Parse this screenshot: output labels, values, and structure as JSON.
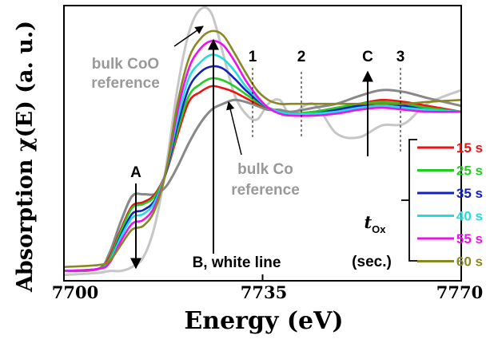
{
  "chart_data": {
    "type": "line",
    "xlabel": "Energy (eV)",
    "ylabel": "Absorption χ(E) (a. u.)",
    "xlim": [
      7700,
      7770
    ],
    "ylim": [
      0,
      1.4
    ],
    "x_ticks": [
      "7700",
      "7735",
      "7770"
    ],
    "grid": false,
    "legend_position": "right",
    "legend_title_main": "t",
    "legend_title_sub": "Ox",
    "legend_title_unit": "(sec.)",
    "series": [
      {
        "name": "15 s",
        "color": "#ee1111",
        "x": [
          7700,
          7706,
          7708,
          7710,
          7712,
          7714,
          7716,
          7718,
          7720,
          7722,
          7724,
          7726,
          7728,
          7730,
          7732,
          7734,
          7736,
          7738,
          7740,
          7744,
          7748,
          7752,
          7756,
          7760,
          7764,
          7770
        ],
        "y": [
          0.05,
          0.06,
          0.12,
          0.26,
          0.38,
          0.4,
          0.44,
          0.55,
          0.74,
          0.91,
          0.96,
          0.99,
          0.98,
          0.96,
          0.93,
          0.9,
          0.88,
          0.86,
          0.85,
          0.86,
          0.88,
          0.9,
          0.92,
          0.91,
          0.89,
          0.86
        ]
      },
      {
        "name": "25 s",
        "color": "#22cc22",
        "x": [
          7700,
          7706,
          7708,
          7710,
          7712,
          7714,
          7716,
          7718,
          7720,
          7722,
          7724,
          7726,
          7728,
          7730,
          7732,
          7734,
          7736,
          7738,
          7740,
          7744,
          7748,
          7752,
          7756,
          7760,
          7764,
          7770
        ],
        "y": [
          0.05,
          0.06,
          0.11,
          0.25,
          0.37,
          0.39,
          0.43,
          0.55,
          0.76,
          0.94,
          1.0,
          1.03,
          1.02,
          0.99,
          0.95,
          0.91,
          0.88,
          0.86,
          0.85,
          0.86,
          0.88,
          0.9,
          0.91,
          0.9,
          0.88,
          0.86
        ]
      },
      {
        "name": "35 s",
        "color": "#1122bb",
        "x": [
          7700,
          7706,
          7708,
          7710,
          7712,
          7714,
          7716,
          7718,
          7720,
          7722,
          7724,
          7726,
          7728,
          7730,
          7732,
          7734,
          7736,
          7738,
          7740,
          7744,
          7748,
          7752,
          7756,
          7760,
          7764,
          7770
        ],
        "y": [
          0.05,
          0.06,
          0.1,
          0.23,
          0.34,
          0.36,
          0.41,
          0.55,
          0.79,
          0.98,
          1.06,
          1.09,
          1.08,
          1.03,
          0.97,
          0.92,
          0.88,
          0.86,
          0.85,
          0.85,
          0.87,
          0.89,
          0.9,
          0.89,
          0.87,
          0.86
        ]
      },
      {
        "name": "40 s",
        "color": "#22dddd",
        "x": [
          7700,
          7706,
          7708,
          7710,
          7712,
          7714,
          7716,
          7718,
          7720,
          7722,
          7724,
          7726,
          7728,
          7730,
          7732,
          7734,
          7736,
          7738,
          7740,
          7744,
          7748,
          7752,
          7756,
          7760,
          7764,
          7770
        ],
        "y": [
          0.05,
          0.06,
          0.1,
          0.22,
          0.32,
          0.34,
          0.4,
          0.56,
          0.82,
          1.03,
          1.11,
          1.15,
          1.13,
          1.07,
          0.99,
          0.93,
          0.88,
          0.86,
          0.85,
          0.85,
          0.86,
          0.88,
          0.89,
          0.88,
          0.87,
          0.86
        ]
      },
      {
        "name": "55 s",
        "color": "#ee11ee",
        "x": [
          7700,
          7706,
          7708,
          7710,
          7712,
          7714,
          7716,
          7718,
          7720,
          7722,
          7724,
          7726,
          7728,
          7730,
          7732,
          7734,
          7736,
          7738,
          7740,
          7744,
          7748,
          7752,
          7756,
          7760,
          7764,
          7770
        ],
        "y": [
          0.05,
          0.06,
          0.09,
          0.2,
          0.29,
          0.31,
          0.38,
          0.56,
          0.86,
          1.08,
          1.18,
          1.22,
          1.2,
          1.12,
          1.02,
          0.94,
          0.88,
          0.85,
          0.84,
          0.84,
          0.85,
          0.87,
          0.88,
          0.87,
          0.86,
          0.86
        ]
      },
      {
        "name": "60 s",
        "color": "#888822",
        "x": [
          7700,
          7706,
          7708,
          7710,
          7712,
          7714,
          7716,
          7718,
          7720,
          7722,
          7724,
          7726,
          7728,
          7730,
          7732,
          7734,
          7736,
          7738,
          7740,
          7744,
          7748,
          7752,
          7756,
          7760,
          7764,
          7770
        ],
        "y": [
          0.07,
          0.08,
          0.1,
          0.18,
          0.26,
          0.28,
          0.36,
          0.56,
          0.9,
          1.13,
          1.23,
          1.27,
          1.25,
          1.16,
          1.06,
          0.97,
          0.92,
          0.9,
          0.9,
          0.9,
          0.9,
          0.9,
          0.9,
          0.9,
          0.91,
          0.92
        ]
      },
      {
        "name": "bulk CoO reference",
        "color": "#c6c6c6",
        "x": [
          7700,
          7706,
          7708,
          7710,
          7712,
          7714,
          7716,
          7718,
          7720,
          7722,
          7724,
          7726,
          7728,
          7730,
          7732,
          7734,
          7736,
          7738,
          7740,
          7744,
          7748,
          7752,
          7756,
          7760,
          7764,
          7770
        ],
        "y": [
          0.03,
          0.04,
          0.05,
          0.05,
          0.07,
          0.12,
          0.28,
          0.58,
          0.98,
          1.26,
          1.38,
          1.36,
          1.16,
          0.95,
          0.85,
          0.82,
          0.9,
          0.92,
          0.85,
          0.9,
          0.75,
          0.73,
          0.79,
          0.8,
          0.9,
          0.97
        ]
      },
      {
        "name": "bulk Co reference",
        "color": "#888888",
        "x": [
          7700,
          7706,
          7708,
          7710,
          7712,
          7714,
          7716,
          7718,
          7720,
          7722,
          7724,
          7726,
          7728,
          7730,
          7732,
          7734,
          7736,
          7738,
          7740,
          7744,
          7748,
          7752,
          7756,
          7760,
          7764,
          7770
        ],
        "y": [
          0.05,
          0.06,
          0.14,
          0.3,
          0.43,
          0.44,
          0.44,
          0.48,
          0.58,
          0.7,
          0.8,
          0.87,
          0.9,
          0.92,
          0.91,
          0.89,
          0.87,
          0.87,
          0.86,
          0.88,
          0.9,
          0.94,
          0.97,
          0.96,
          0.93,
          0.89
        ]
      }
    ],
    "legend_entries": [
      "15 s",
      "25 s",
      "35 s",
      "40 s",
      "55 s",
      "60 s"
    ],
    "annotations": {
      "bulk_coo_line1": "bulk CoO",
      "bulk_coo_line2": "reference",
      "bulk_co_line1": "bulk Co",
      "bulk_co_line2": "reference",
      "label_a": "A",
      "label_b": "B, white line",
      "label_c": "C",
      "label_1": "1",
      "label_2": "2",
      "label_3": "3"
    }
  }
}
